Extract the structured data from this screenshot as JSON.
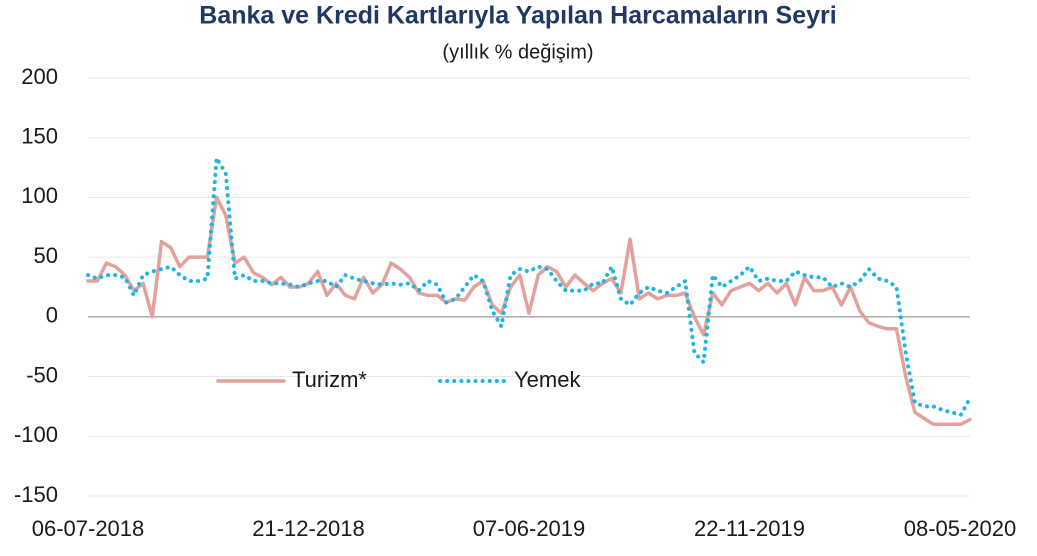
{
  "chart_data": {
    "type": "line",
    "title": "Banka ve Kredi Kartlarıyla Yapılan Harcamaların Seyri",
    "subtitle": "(yıllık % değişim)",
    "categories": [
      "06-07-2018",
      null,
      null,
      null,
      null,
      null,
      null,
      null,
      null,
      null,
      null,
      null,
      null,
      null,
      null,
      null,
      null,
      null,
      null,
      null,
      null,
      null,
      null,
      null,
      "21-12-2018",
      null,
      null,
      null,
      null,
      null,
      null,
      null,
      null,
      null,
      null,
      null,
      null,
      null,
      null,
      null,
      null,
      null,
      null,
      null,
      null,
      null,
      null,
      null,
      "07-06-2019",
      null,
      null,
      null,
      null,
      null,
      null,
      null,
      null,
      null,
      null,
      null,
      null,
      null,
      null,
      null,
      null,
      null,
      null,
      null,
      null,
      null,
      null,
      null,
      "22-11-2019",
      null,
      null,
      null,
      null,
      null,
      null,
      null,
      null,
      null,
      null,
      null,
      null,
      null,
      null,
      null,
      null,
      null,
      null,
      null,
      null,
      null,
      null,
      null,
      "08-05-2020"
    ],
    "series": [
      {
        "name": "Turizm*",
        "color": "#e3a19b",
        "dash": "solid",
        "values": [
          30,
          30,
          45,
          42,
          35,
          22,
          28,
          0,
          63,
          58,
          42,
          50,
          50,
          50,
          100,
          85,
          45,
          50,
          37,
          33,
          27,
          33,
          25,
          25,
          28,
          38,
          18,
          28,
          18,
          15,
          33,
          20,
          27,
          45,
          40,
          33,
          20,
          18,
          18,
          12,
          15,
          14,
          25,
          30,
          10,
          3,
          25,
          35,
          3,
          35,
          42,
          38,
          25,
          35,
          28,
          22,
          28,
          32,
          20,
          65,
          15,
          20,
          15,
          18,
          18,
          20,
          0,
          -15,
          20,
          10,
          22,
          25,
          28,
          22,
          28,
          20,
          28,
          10,
          33,
          22,
          22,
          25,
          10,
          25,
          5,
          -5,
          -8,
          -10,
          -10,
          -50,
          -80,
          -85,
          -90,
          -90,
          -90,
          -90,
          -86
        ]
      },
      {
        "name": "Yemek",
        "color": "#1fb4e6",
        "dash": "dotted",
        "values": [
          35,
          32,
          35,
          35,
          33,
          18,
          35,
          38,
          40,
          42,
          35,
          30,
          30,
          32,
          133,
          120,
          32,
          35,
          30,
          30,
          28,
          28,
          27,
          25,
          28,
          30,
          30,
          25,
          35,
          32,
          30,
          28,
          27,
          28,
          27,
          28,
          22,
          30,
          27,
          12,
          15,
          25,
          35,
          30,
          5,
          -8,
          35,
          40,
          38,
          42,
          40,
          30,
          22,
          22,
          22,
          28,
          28,
          42,
          15,
          10,
          20,
          25,
          22,
          20,
          25,
          30,
          -30,
          -38,
          35,
          25,
          30,
          35,
          42,
          30,
          32,
          30,
          30,
          38,
          35,
          33,
          33,
          25,
          28,
          25,
          30,
          40,
          32,
          30,
          25,
          -30,
          -72,
          -75,
          -75,
          -78,
          -80,
          -82,
          -68
        ]
      }
    ],
    "ylim": [
      -150,
      200
    ],
    "yticks": [
      -150,
      -100,
      -50,
      0,
      50,
      100,
      150,
      200
    ],
    "grid": true,
    "legend": "inside-left"
  }
}
